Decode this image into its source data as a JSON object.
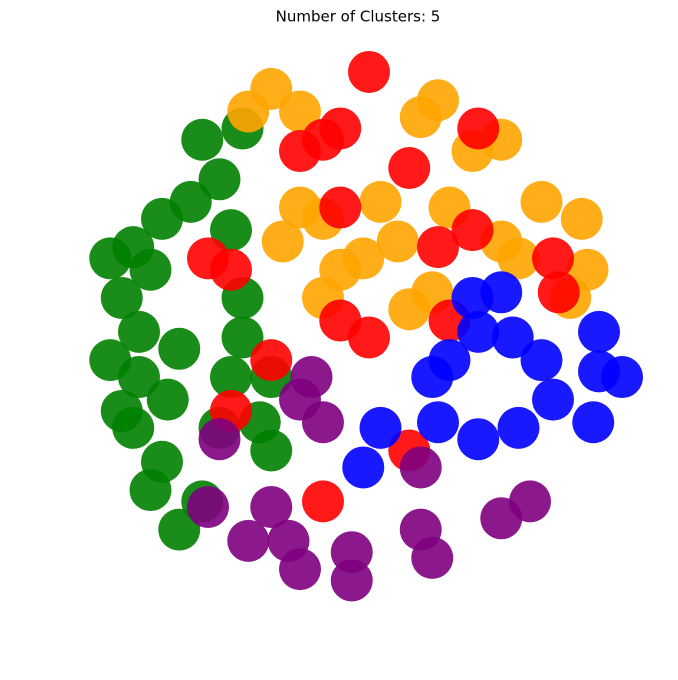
{
  "chart_data": {
    "type": "scatter",
    "title": "Number of Clusters: 5",
    "xlim": [
      -50,
      50
    ],
    "ylim": [
      -50,
      50
    ],
    "series": [
      {
        "color": "green",
        "x": [
          -39,
          -34,
          -29,
          -41,
          -36,
          -24,
          -22,
          -38,
          -43,
          -38,
          -31,
          -20,
          -22,
          -33,
          -39,
          -34,
          -24,
          -17,
          -15,
          -36,
          -27,
          -31,
          -20,
          -27,
          -20,
          -43,
          -15,
          -41
        ],
        "y": [
          16,
          21,
          24,
          7,
          12,
          28,
          19,
          1,
          -4,
          -7,
          -2,
          0,
          -7,
          -11,
          -16,
          -22,
          -16,
          -15,
          -20,
          -27,
          -29,
          -34,
          7,
          35,
          37,
          14,
          -7,
          -13
        ]
      },
      {
        "color": "orange",
        "x": [
          -15,
          -10,
          -19,
          11,
          14,
          25,
          -10,
          -6,
          -13,
          4,
          16,
          7,
          -3,
          1,
          -6,
          9,
          13,
          32,
          39,
          40,
          37,
          25,
          28,
          20
        ],
        "y": [
          44,
          40,
          40,
          39,
          42,
          35,
          23,
          21,
          17,
          24,
          23,
          17,
          12,
          14,
          7,
          5,
          8,
          24,
          21,
          12,
          7,
          17,
          14,
          33
        ]
      },
      {
        "color": "red",
        "x": [
          -6,
          -3,
          -10,
          2,
          -3,
          -22,
          -26,
          9,
          14,
          20,
          -3,
          2,
          -15,
          -22,
          34,
          35,
          21,
          9,
          -6,
          16
        ],
        "y": [
          35,
          37,
          33,
          47,
          23,
          12,
          14,
          30,
          16,
          19,
          3,
          0,
          -4,
          -13,
          14,
          8,
          37,
          -20,
          -29,
          3
        ]
      },
      {
        "color": "blue",
        "x": [
          20,
          25,
          21,
          27,
          16,
          32,
          42,
          42,
          41,
          28,
          21,
          13,
          4,
          1,
          34,
          46,
          14
        ],
        "y": [
          7,
          8,
          1,
          0,
          -4,
          -4,
          -6,
          1,
          -15,
          -16,
          -18,
          -7,
          -16,
          -23,
          -11,
          -7,
          -15
        ]
      },
      {
        "color": "purple",
        "x": [
          -8,
          -6,
          -10,
          -15,
          -12,
          -10,
          -19,
          -1,
          -1,
          11,
          13,
          11,
          25,
          30,
          -24,
          -26
        ],
        "y": [
          -7,
          -15,
          -11,
          -30,
          -36,
          -41,
          -36,
          -38,
          -43,
          -34,
          -39,
          -23,
          -32,
          -29,
          -18,
          -30
        ]
      }
    ]
  }
}
